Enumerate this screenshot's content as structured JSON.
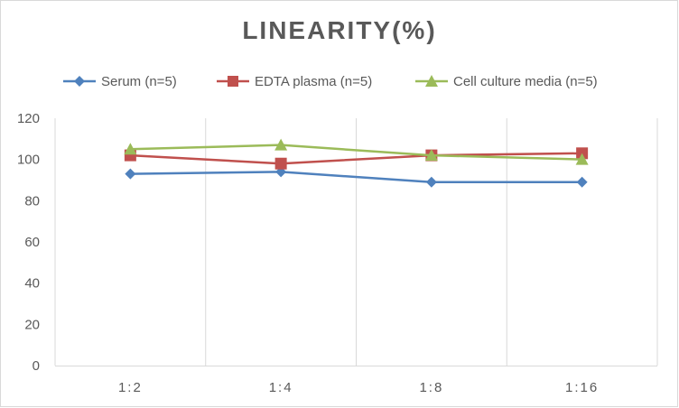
{
  "chart_data": {
    "type": "line",
    "title": "LINEARITY(%)",
    "xlabel": "",
    "ylabel": "",
    "categories": [
      "1:2",
      "1:4",
      "1:8",
      "1:16"
    ],
    "ylim": [
      0,
      120
    ],
    "yticks": [
      0,
      20,
      40,
      60,
      80,
      100,
      120
    ],
    "grid": "vertical",
    "legend_position": "top",
    "series": [
      {
        "name": "Serum (n=5)",
        "values": [
          93,
          94,
          89,
          89
        ],
        "color": "#4f81bd",
        "marker": "diamond"
      },
      {
        "name": "EDTA plasma (n=5)",
        "values": [
          102,
          98,
          102,
          103
        ],
        "color": "#c0504d",
        "marker": "square"
      },
      {
        "name": "Cell culture media (n=5)",
        "values": [
          105,
          107,
          102,
          100
        ],
        "color": "#9bbb59",
        "marker": "triangle"
      }
    ]
  }
}
